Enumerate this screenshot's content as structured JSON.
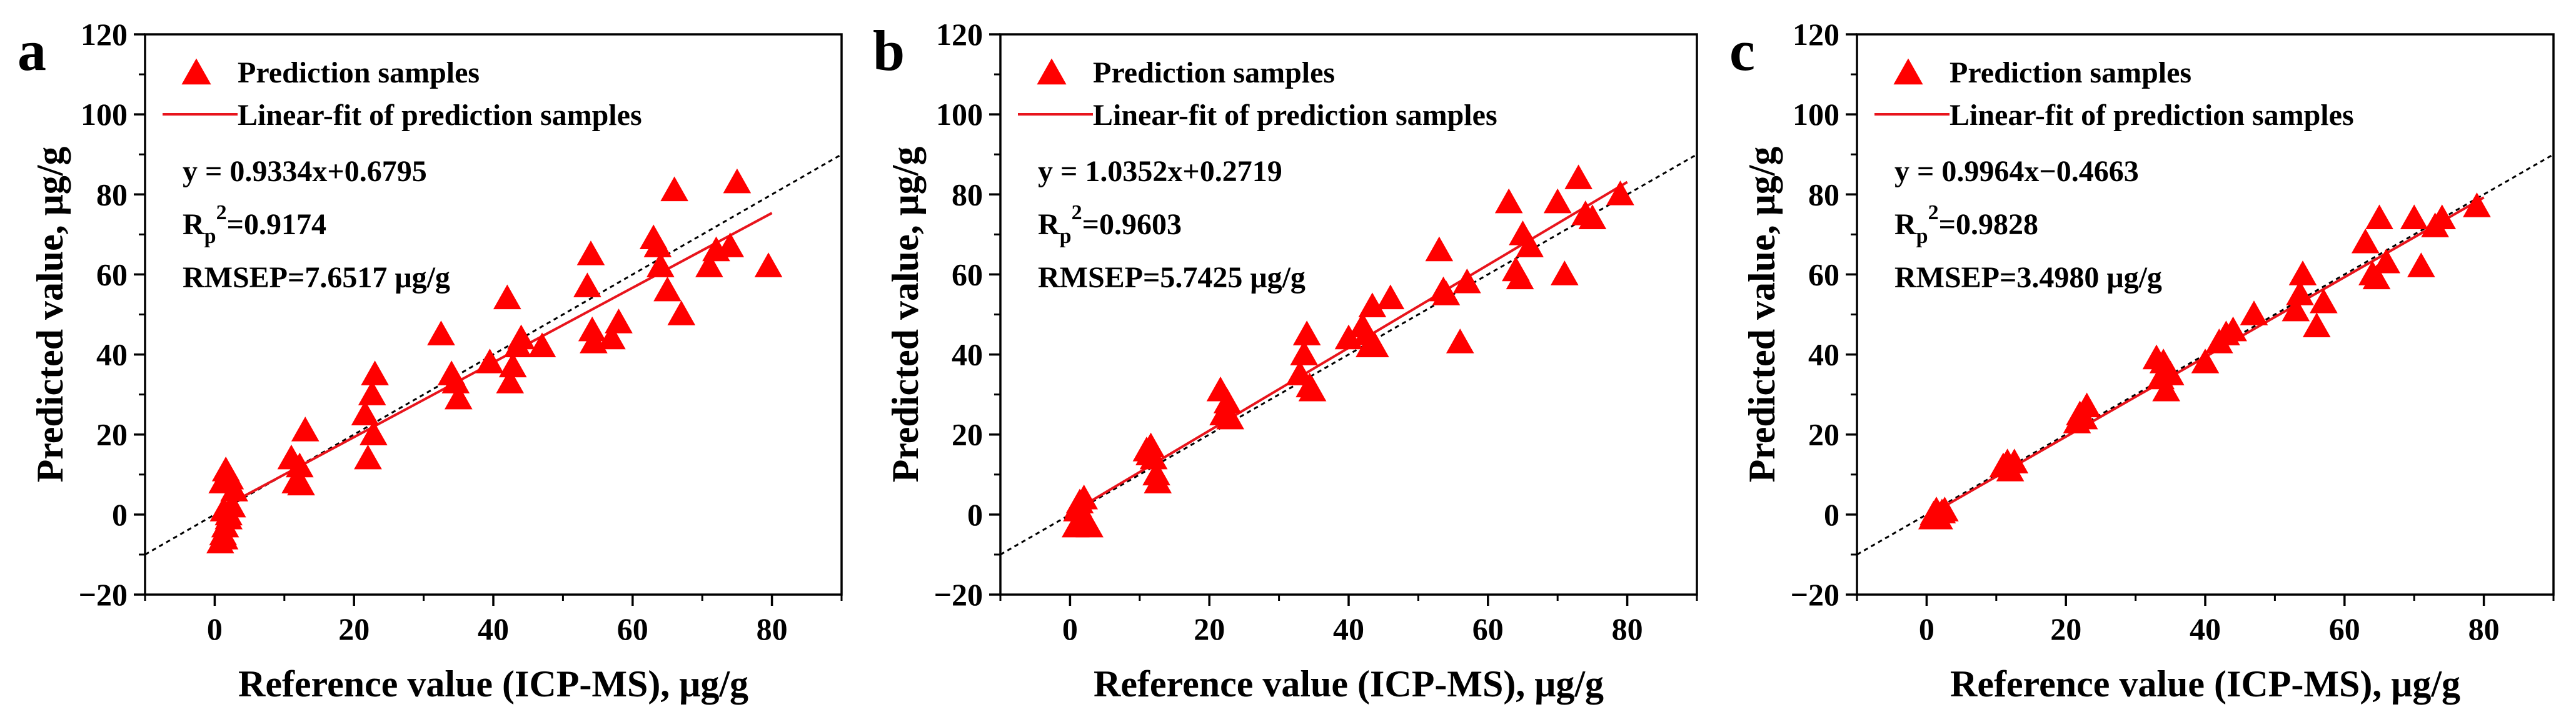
{
  "chart_data": [
    {
      "panel_label": "a",
      "type": "scatter",
      "xlabel": "Reference value (ICP-MS), μg/g",
      "ylabel": "Predicted value, μg/g",
      "xlim": [
        -10,
        90
      ],
      "ylim": [
        -20,
        120
      ],
      "xticks": [
        0,
        20,
        40,
        60,
        80
      ],
      "yticks": [
        -20,
        0,
        20,
        40,
        60,
        80,
        100,
        120
      ],
      "legend_placement": "top-left",
      "legend": {
        "scatter_label": "Prediction samples",
        "fit_label": "Linear-fit of prediction samples"
      },
      "annotations": {
        "equation": "y = 0.9334x+0.6795",
        "r_prefix": "R",
        "r_sub": "p",
        "r_sup": "2",
        "r_value": "=0.9174",
        "rmsep": "RMSEP=7.6517 μg/g"
      },
      "fit": {
        "slope": 0.9334,
        "intercept": 0.6795,
        "x_range": [
          0.8,
          80
        ]
      },
      "identity_line": true,
      "marker_color": "#ff0000",
      "fit_color": "#e8141c",
      "points": [
        [
          0.8,
          -7
        ],
        [
          1.2,
          -5
        ],
        [
          1.5,
          -3
        ],
        [
          2,
          -1
        ],
        [
          1.3,
          1
        ],
        [
          2.5,
          2
        ],
        [
          1.6,
          11
        ],
        [
          2.2,
          9
        ],
        [
          1.1,
          8
        ],
        [
          2.8,
          6
        ],
        [
          1.4,
          -6
        ],
        [
          2,
          0
        ],
        [
          11,
          14
        ],
        [
          12.2,
          12
        ],
        [
          11.6,
          8
        ],
        [
          12.4,
          7.5
        ],
        [
          13,
          21
        ],
        [
          22,
          14
        ],
        [
          21.6,
          25
        ],
        [
          22.6,
          30
        ],
        [
          23,
          35
        ],
        [
          22.8,
          20
        ],
        [
          32.5,
          45
        ],
        [
          34,
          35
        ],
        [
          34.6,
          33
        ],
        [
          35,
          29
        ],
        [
          39.5,
          38
        ],
        [
          42,
          54
        ],
        [
          42.4,
          33
        ],
        [
          42.8,
          37
        ],
        [
          43.5,
          42
        ],
        [
          44,
          44
        ],
        [
          47,
          42
        ],
        [
          53.5,
          57
        ],
        [
          54,
          65
        ],
        [
          54.2,
          46
        ],
        [
          54.4,
          43
        ],
        [
          57,
          44
        ],
        [
          58,
          48
        ],
        [
          63,
          69
        ],
        [
          63.6,
          67
        ],
        [
          64,
          62
        ],
        [
          65,
          56
        ],
        [
          66,
          81
        ],
        [
          67,
          50
        ],
        [
          71,
          62
        ],
        [
          72,
          66
        ],
        [
          74,
          67
        ],
        [
          75,
          83
        ],
        [
          79.5,
          62
        ]
      ]
    },
    {
      "panel_label": "b",
      "type": "scatter",
      "xlabel": "Reference value (ICP-MS), μg/g",
      "ylabel": "Predicted value, μg/g",
      "xlim": [
        -10,
        90
      ],
      "ylim": [
        -20,
        120
      ],
      "xticks": [
        0,
        20,
        40,
        60,
        80
      ],
      "yticks": [
        -20,
        0,
        20,
        40,
        60,
        80,
        100,
        120
      ],
      "legend_placement": "top-left",
      "legend": {
        "scatter_label": "Prediction samples",
        "fit_label": "Linear-fit of prediction samples"
      },
      "annotations": {
        "equation": "y = 1.0352x+0.2719",
        "r_prefix": "R",
        "r_sub": "p",
        "r_sup": "2",
        "r_value": "=0.9603",
        "rmsep": "RMSEP=5.7425 μg/g"
      },
      "fit": {
        "slope": 1.0352,
        "intercept": 0.2719,
        "x_range": [
          0.8,
          80
        ]
      },
      "identity_line": true,
      "marker_color": "#ff0000",
      "fit_color": "#e8141c",
      "points": [
        [
          0.8,
          -3
        ],
        [
          1,
          1
        ],
        [
          1.4,
          3
        ],
        [
          2,
          4
        ],
        [
          2.4,
          -2
        ],
        [
          1.6,
          -1
        ],
        [
          2.8,
          -3
        ],
        [
          1.2,
          2
        ],
        [
          11,
          16
        ],
        [
          11.6,
          17
        ],
        [
          12,
          14
        ],
        [
          12.4,
          10
        ],
        [
          11.4,
          15
        ],
        [
          12.6,
          8
        ],
        [
          21.6,
          31
        ],
        [
          22,
          25
        ],
        [
          22.6,
          28
        ],
        [
          23,
          24
        ],
        [
          33,
          35
        ],
        [
          33.6,
          40
        ],
        [
          34,
          45
        ],
        [
          34.4,
          32
        ],
        [
          34.8,
          31
        ],
        [
          40,
          44
        ],
        [
          42,
          47
        ],
        [
          42.6,
          45
        ],
        [
          43,
          42
        ],
        [
          43.4,
          52
        ],
        [
          43.8,
          42
        ],
        [
          46,
          54
        ],
        [
          53,
          66
        ],
        [
          53.6,
          56
        ],
        [
          54,
          55
        ],
        [
          56,
          43
        ],
        [
          57,
          58
        ],
        [
          63,
          78
        ],
        [
          64,
          61
        ],
        [
          64.6,
          59
        ],
        [
          65,
          70
        ],
        [
          66,
          67
        ],
        [
          70,
          78
        ],
        [
          71,
          60
        ],
        [
          73,
          84
        ],
        [
          74,
          75
        ],
        [
          75,
          74
        ],
        [
          79,
          80
        ]
      ]
    },
    {
      "panel_label": "c",
      "type": "scatter",
      "xlabel": "Reference value (ICP-MS), μg/g",
      "ylabel": "Predicted value, μg/g",
      "xlim": [
        -10,
        90
      ],
      "ylim": [
        -20,
        120
      ],
      "xticks": [
        0,
        20,
        40,
        60,
        80
      ],
      "yticks": [
        -20,
        0,
        20,
        40,
        60,
        80,
        100,
        120
      ],
      "legend_placement": "top-left",
      "legend": {
        "scatter_label": "Prediction samples",
        "fit_label": "Linear-fit of prediction samples"
      },
      "annotations": {
        "equation": "y = 0.9964x−0.4663",
        "r_prefix": "R",
        "r_sub": "p",
        "r_sup": "2",
        "r_value": "=0.9828",
        "rmsep": "RMSEP=3.4980 μg/g"
      },
      "fit": {
        "slope": 0.9964,
        "intercept": -0.4663,
        "x_range": [
          0.8,
          80
        ]
      },
      "identity_line": true,
      "marker_color": "#ff0000",
      "fit_color": "#e8141c",
      "points": [
        [
          0.8,
          -1
        ],
        [
          1,
          0
        ],
        [
          1.4,
          1
        ],
        [
          1.8,
          -1
        ],
        [
          2.2,
          0.5
        ],
        [
          2.6,
          1
        ],
        [
          1.2,
          -0.5
        ],
        [
          11,
          12
        ],
        [
          11.6,
          13
        ],
        [
          12,
          11
        ],
        [
          12.6,
          13
        ],
        [
          21.6,
          23
        ],
        [
          22,
          25
        ],
        [
          22.6,
          24
        ],
        [
          23,
          27
        ],
        [
          33,
          39
        ],
        [
          33.6,
          34
        ],
        [
          34,
          38
        ],
        [
          34.4,
          31
        ],
        [
          35,
          35
        ],
        [
          40,
          38
        ],
        [
          42,
          43
        ],
        [
          43,
          45
        ],
        [
          44,
          46
        ],
        [
          47,
          50
        ],
        [
          53,
          51
        ],
        [
          53.6,
          55
        ],
        [
          54,
          60
        ],
        [
          56,
          47
        ],
        [
          57,
          53
        ],
        [
          63,
          68
        ],
        [
          64,
          60
        ],
        [
          64.6,
          59
        ],
        [
          65,
          74
        ],
        [
          66,
          63
        ],
        [
          70,
          74
        ],
        [
          71,
          62
        ],
        [
          73,
          72
        ],
        [
          74,
          74
        ],
        [
          79,
          77
        ]
      ]
    }
  ]
}
